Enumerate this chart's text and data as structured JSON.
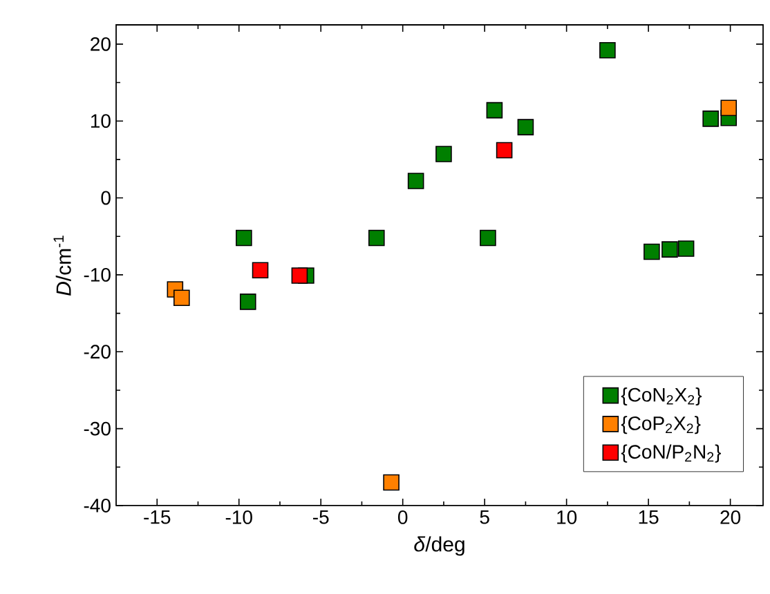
{
  "chart_data": {
    "type": "scatter",
    "xlabel": "*δ*/deg",
    "ylabel": "*D*/cm$^{-1}$",
    "xlim": [
      -17.5,
      22
    ],
    "ylim": [
      -40,
      22.5
    ],
    "xticks": [
      -15,
      -10,
      -5,
      0,
      5,
      10,
      15,
      20
    ],
    "yticks": [
      -40,
      -30,
      -20,
      -10,
      0,
      10,
      20
    ],
    "marker": "square",
    "legend": "bottom right",
    "grid": false,
    "series": [
      {
        "name": "{CoN$_{2}$X$_{2}$}",
        "color": "#007f00",
        "x": [
          -9.7,
          -9.45,
          -5.9,
          -1.6,
          0.8,
          2.5,
          5.2,
          5.6,
          7.5,
          12.5,
          15.2,
          16.3,
          17.3,
          18.8,
          19.9
        ],
        "values": [
          -5.2,
          -13.5,
          -10.1,
          -5.2,
          2.2,
          5.7,
          -5.2,
          11.4,
          9.2,
          19.2,
          -7.0,
          -6.7,
          -6.6,
          10.3,
          10.4
        ]
      },
      {
        "name": "{CoP$_{2}$X$_{2}$}",
        "color": "#ff8000",
        "x": [
          -13.9,
          -13.5,
          -0.7,
          19.9
        ],
        "values": [
          -11.9,
          -13.0,
          -37.0,
          11.7
        ]
      },
      {
        "name": "{CoN/P$_{2}$N$_{2}$}",
        "color": "#ff0000",
        "x": [
          -8.7,
          -6.3,
          6.2
        ],
        "values": [
          -9.4,
          -10.1,
          6.2
        ]
      }
    ]
  }
}
